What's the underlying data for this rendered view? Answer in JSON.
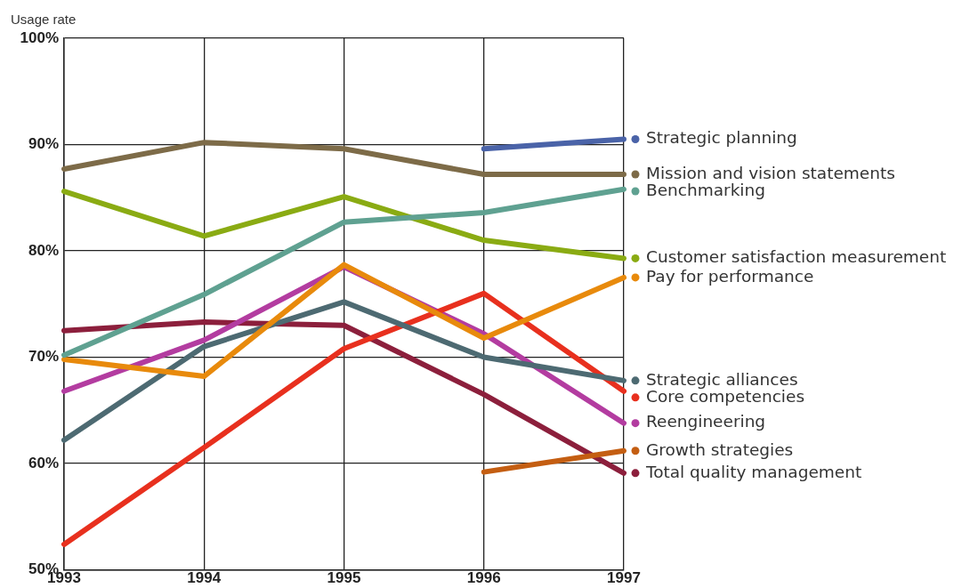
{
  "chart_data": {
    "type": "line",
    "ylabel": "Usage rate",
    "categories": [
      "1993",
      "1994",
      "1995",
      "1996",
      "1997"
    ],
    "series": [
      {
        "name": "Strategic planning",
        "color": "#4a63a8",
        "values": [
          null,
          null,
          null,
          89.6,
          90.5
        ]
      },
      {
        "name": "Mission and vision statements",
        "color": "#7d6b48",
        "values": [
          87.7,
          90.2,
          89.6,
          87.2,
          87.2
        ]
      },
      {
        "name": "Benchmarking",
        "color": "#5fa191",
        "values": [
          70.2,
          75.9,
          82.7,
          83.6,
          85.8
        ]
      },
      {
        "name": "Customer satisfaction measurement",
        "color": "#8aab13",
        "values": [
          85.6,
          81.4,
          85.1,
          81.0,
          79.3
        ]
      },
      {
        "name": "Pay for performance",
        "color": "#e88a0c",
        "values": [
          69.8,
          68.2,
          78.7,
          71.8,
          77.5
        ]
      },
      {
        "name": "Strategic alliances",
        "color": "#4d6a72",
        "values": [
          62.2,
          71.0,
          75.2,
          70.0,
          67.8
        ]
      },
      {
        "name": "Core competencies",
        "color": "#e8301e",
        "values": [
          52.4,
          61.5,
          70.8,
          76.0,
          66.8
        ]
      },
      {
        "name": "Reengineering",
        "color": "#b33ca0",
        "values": [
          66.8,
          71.6,
          78.5,
          72.2,
          63.8
        ]
      },
      {
        "name": "Growth strategies",
        "color": "#c45e12",
        "values": [
          null,
          null,
          null,
          59.2,
          61.2
        ]
      },
      {
        "name": "Total quality management",
        "color": "#8c1f3c",
        "values": [
          72.5,
          73.3,
          73.0,
          66.5,
          59.1
        ]
      }
    ],
    "ylim": [
      50,
      100
    ],
    "yticks": [
      {
        "value": 50,
        "label": "50%"
      },
      {
        "value": 60,
        "label": "60%"
      },
      {
        "value": 70,
        "label": "70%"
      },
      {
        "value": 80,
        "label": "80%"
      },
      {
        "value": 90,
        "label": "90%"
      },
      {
        "value": 100,
        "label": "100%"
      }
    ],
    "grid": true,
    "legend": "right",
    "marker": "none",
    "line_style": "solid"
  }
}
